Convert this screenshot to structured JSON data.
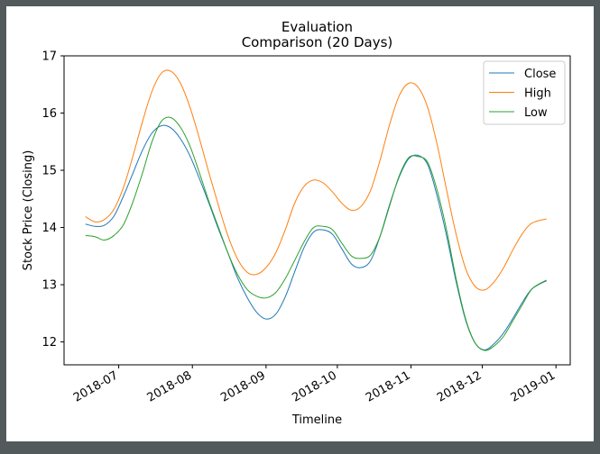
{
  "chart_data": {
    "type": "line",
    "title": "Evaluation\nComparison (20 Days)",
    "title_lines": [
      "Evaluation",
      "Comparison (20 Days)"
    ],
    "xlabel": "Timeline",
    "ylabel": "Stock Price (Closing)",
    "xlim": [
      "2018-06-08",
      "2019-01-07"
    ],
    "ylim": [
      11.6,
      17.0
    ],
    "x_ticks": [
      "2018-07-01",
      "2018-08-01",
      "2018-09-01",
      "2018-10-01",
      "2018-11-01",
      "2018-12-01",
      "2019-01-01"
    ],
    "x_tick_labels": [
      "2018-07",
      "2018-08",
      "2018-09",
      "2018-10",
      "2018-11",
      "2018-12",
      "2019-01"
    ],
    "y_ticks": [
      12,
      13,
      14,
      15,
      16,
      17
    ],
    "grid": false,
    "legend_position": "top-right",
    "x": [
      "2018-06-17",
      "2018-06-21",
      "2018-06-25",
      "2018-06-29",
      "2018-07-03",
      "2018-07-07",
      "2018-07-11",
      "2018-07-15",
      "2018-07-19",
      "2018-07-23",
      "2018-07-27",
      "2018-07-31",
      "2018-08-04",
      "2018-08-08",
      "2018-08-12",
      "2018-08-16",
      "2018-08-20",
      "2018-08-24",
      "2018-08-28",
      "2018-09-01",
      "2018-09-05",
      "2018-09-09",
      "2018-09-13",
      "2018-09-17",
      "2018-09-21",
      "2018-09-25",
      "2018-09-29",
      "2018-10-03",
      "2018-10-07",
      "2018-10-11",
      "2018-10-15",
      "2018-10-19",
      "2018-10-23",
      "2018-10-27",
      "2018-10-31",
      "2018-11-04",
      "2018-11-08",
      "2018-11-12",
      "2018-11-16",
      "2018-11-20",
      "2018-11-24",
      "2018-11-28",
      "2018-12-02",
      "2018-12-06",
      "2018-12-10",
      "2018-12-14",
      "2018-12-18",
      "2018-12-22",
      "2018-12-28"
    ],
    "series": [
      {
        "name": "Close",
        "color": "#1f77b4",
        "values": [
          14.06,
          14.02,
          14.04,
          14.2,
          14.55,
          14.95,
          15.35,
          15.65,
          15.78,
          15.74,
          15.55,
          15.25,
          14.85,
          14.42,
          13.97,
          13.55,
          13.12,
          12.78,
          12.52,
          12.4,
          12.48,
          12.78,
          13.22,
          13.65,
          13.92,
          13.96,
          13.88,
          13.62,
          13.36,
          13.3,
          13.42,
          13.85,
          14.4,
          14.88,
          15.2,
          15.26,
          15.1,
          14.55,
          13.85,
          13.05,
          12.38,
          11.98,
          11.86,
          11.97,
          12.16,
          12.42,
          12.7,
          12.93,
          13.07
        ]
      },
      {
        "name": "High",
        "color": "#ff7f0e",
        "values": [
          14.19,
          14.1,
          14.14,
          14.32,
          14.7,
          15.25,
          15.85,
          16.38,
          16.7,
          16.73,
          16.52,
          16.1,
          15.55,
          14.95,
          14.38,
          13.85,
          13.45,
          13.22,
          13.18,
          13.3,
          13.55,
          13.95,
          14.42,
          14.72,
          14.83,
          14.78,
          14.62,
          14.42,
          14.3,
          14.37,
          14.65,
          15.18,
          15.8,
          16.3,
          16.52,
          16.45,
          16.1,
          15.45,
          14.65,
          13.88,
          13.28,
          12.97,
          12.91,
          13.05,
          13.3,
          13.62,
          13.9,
          14.08,
          14.15
        ]
      },
      {
        "name": "Low",
        "color": "#2ca02c",
        "values": [
          13.86,
          13.84,
          13.78,
          13.86,
          14.05,
          14.45,
          14.95,
          15.5,
          15.86,
          15.92,
          15.75,
          15.42,
          14.95,
          14.45,
          14.0,
          13.55,
          13.18,
          12.92,
          12.8,
          12.77,
          12.86,
          13.1,
          13.42,
          13.75,
          14.0,
          14.02,
          13.96,
          13.72,
          13.5,
          13.46,
          13.52,
          13.85,
          14.38,
          14.9,
          15.22,
          15.24,
          15.14,
          14.65,
          13.95,
          13.1,
          12.4,
          11.98,
          11.85,
          11.93,
          12.1,
          12.38,
          12.66,
          12.93,
          13.08
        ]
      }
    ]
  }
}
